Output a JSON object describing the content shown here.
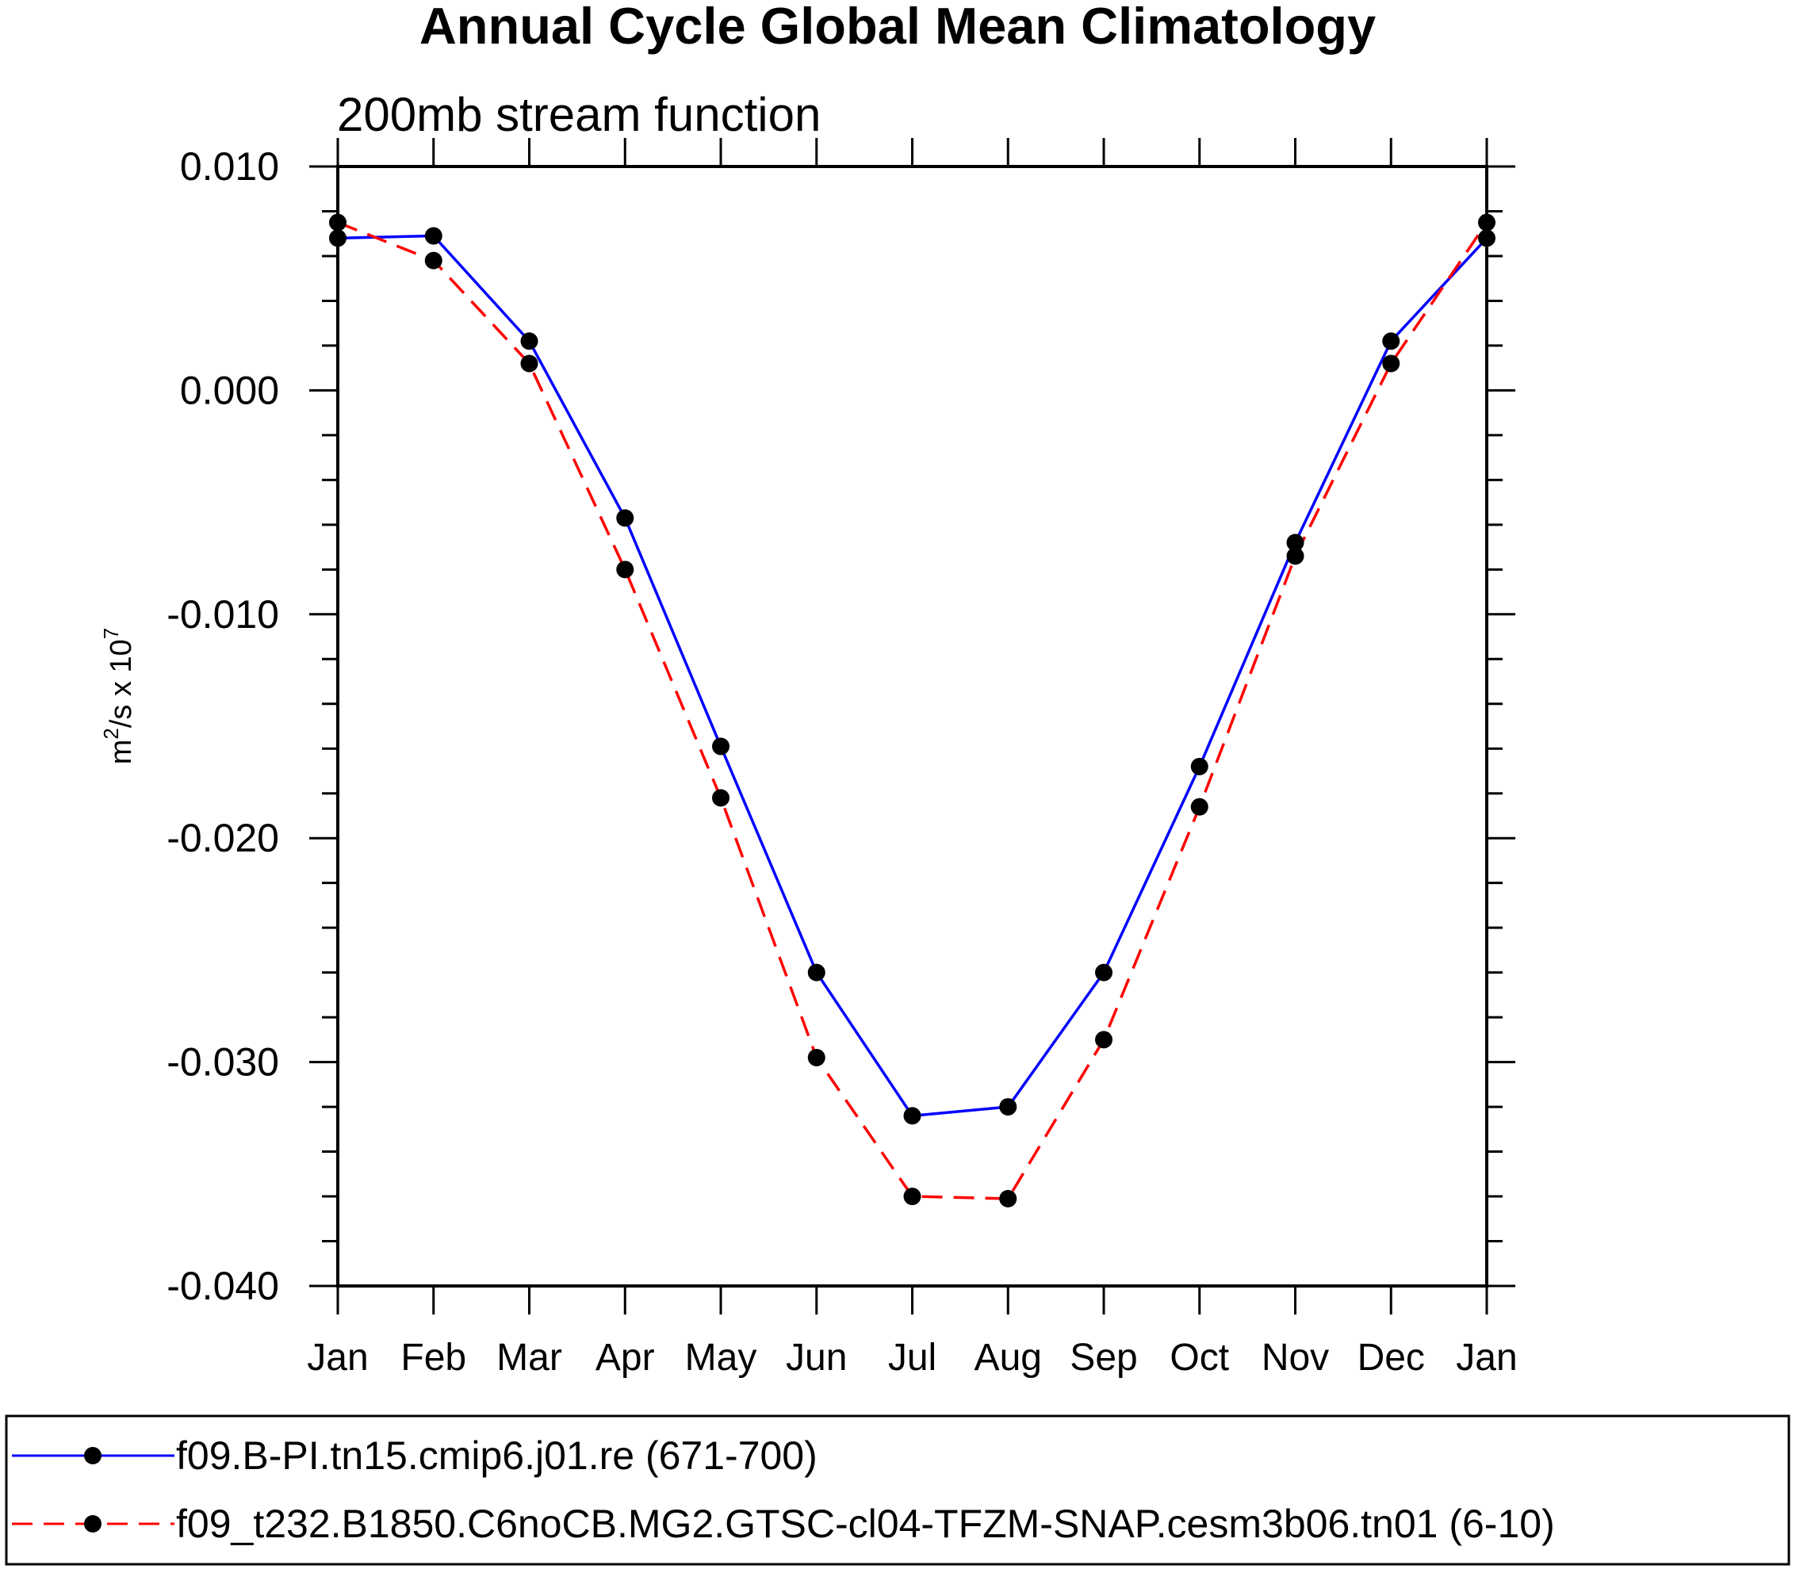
{
  "chart_data": {
    "type": "line",
    "title": "Annual Cycle Global Mean Climatology",
    "subtitle": "200mb stream function",
    "ylabel_main": "m",
    "ylabel_sup": "2",
    "ylabel_rest": "/s x 10",
    "ylabel_exp": "7",
    "categories": [
      "Jan",
      "Feb",
      "Mar",
      "Apr",
      "May",
      "Jun",
      "Jul",
      "Aug",
      "Sep",
      "Oct",
      "Nov",
      "Dec",
      "Jan"
    ],
    "ylim": [
      -0.04,
      0.01
    ],
    "yticks": [
      0.01,
      0.0,
      -0.01,
      -0.02,
      -0.03,
      -0.04
    ],
    "ytick_labels": [
      "0.010",
      "0.000",
      "-0.010",
      "-0.020",
      "-0.030",
      "-0.040"
    ],
    "series": [
      {
        "name": "f09.B-PI.tn15.cmip6.j01.re (671-700)",
        "color": "#0000ff",
        "dash": "solid",
        "values": [
          0.0068,
          0.0069,
          0.0022,
          -0.0057,
          -0.0159,
          -0.026,
          -0.0324,
          -0.032,
          -0.026,
          -0.0168,
          -0.0068,
          0.0022,
          0.0068
        ]
      },
      {
        "name": "f09_t232.B1850.C6noCB.MG2.GTSC-cl04-TFZM-SNAP.cesm3b06.tn01 (6-10)",
        "color": "#ff0000",
        "dash": "dashed",
        "values": [
          0.0075,
          0.0058,
          0.0012,
          -0.008,
          -0.0182,
          -0.0298,
          -0.036,
          -0.0361,
          -0.029,
          -0.0186,
          -0.0074,
          0.0012,
          0.0075
        ]
      }
    ],
    "marker_color": "#000000"
  }
}
